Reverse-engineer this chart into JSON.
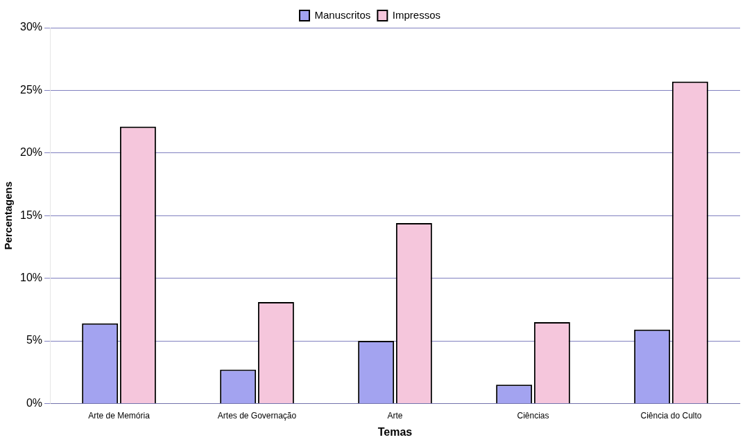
{
  "chart_data": {
    "type": "bar",
    "xlabel": "Temas",
    "ylabel": "Percentagens",
    "categories": [
      "Arte de Memória",
      "Artes de Governação",
      "Arte",
      "Ciências",
      "Ciência do Culto"
    ],
    "series": [
      {
        "name": "Manuscritos",
        "color": "#a3a3f0",
        "values": [
          6.4,
          2.7,
          5.0,
          1.5,
          5.9
        ]
      },
      {
        "name": "Impressos",
        "color": "#f5c6dc",
        "values": [
          22.1,
          8.1,
          14.4,
          6.5,
          25.7
        ]
      }
    ],
    "ylim": [
      0,
      30
    ],
    "yticks": [
      {
        "value": 0,
        "label": "0%"
      },
      {
        "value": 5,
        "label": "5%"
      },
      {
        "value": 10,
        "label": "10%"
      },
      {
        "value": 15,
        "label": "15%"
      },
      {
        "value": 20,
        "label": "20%"
      },
      {
        "value": 25,
        "label": "25%"
      },
      {
        "value": 30,
        "label": "30%"
      }
    ],
    "grid": "y",
    "legend": "top"
  }
}
